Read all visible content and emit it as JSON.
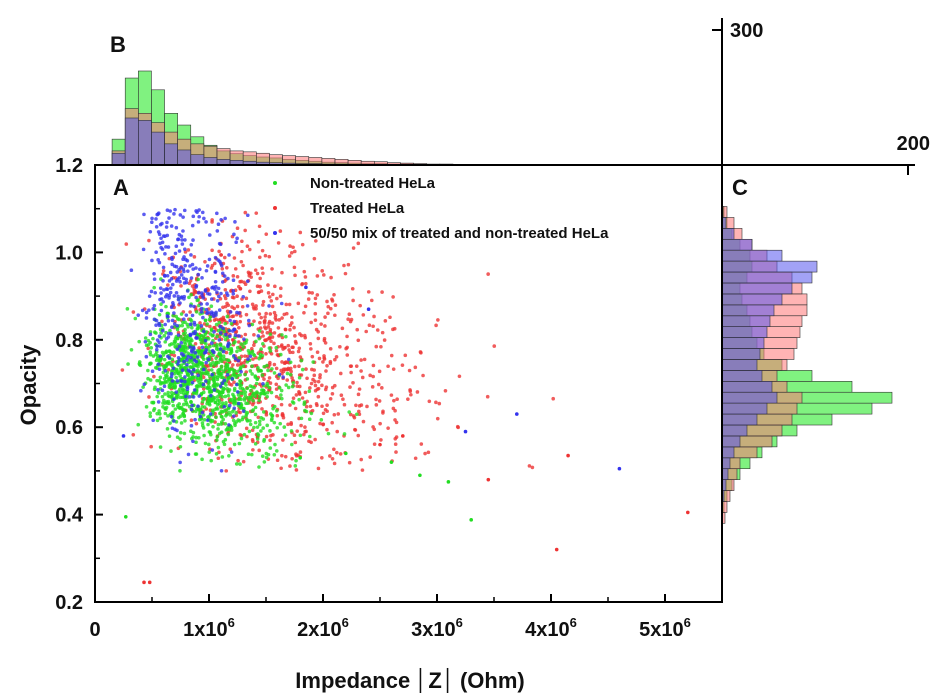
{
  "chart_data": [
    {
      "panel": "A",
      "type": "scatter",
      "xlabel": "Impedance │Z│ (Ohm)",
      "ylabel": "Opacity",
      "xlim": [
        0,
        5500000
      ],
      "ylim": [
        0.2,
        1.2
      ],
      "x_ticks": [
        0,
        1000000,
        2000000,
        3000000,
        4000000,
        5000000
      ],
      "x_tick_labels": [
        {
          "base": "0",
          "exp": ""
        },
        {
          "base": "1x10",
          "exp": "6"
        },
        {
          "base": "2x10",
          "exp": "6"
        },
        {
          "base": "3x10",
          "exp": "6"
        },
        {
          "base": "4x10",
          "exp": "6"
        },
        {
          "base": "5x10",
          "exp": "6"
        }
      ],
      "y_ticks": [
        0.2,
        0.4,
        0.6,
        0.8,
        1.0,
        1.2
      ],
      "y_tick_labels": [
        "0.2",
        "0.4",
        "0.6",
        "0.8",
        "1.0",
        "1.2"
      ],
      "legend_position": "top",
      "series": [
        {
          "name": "Non-treated HeLa",
          "color": "#22dd22",
          "points": [
            [
              270000,
              0.395
            ],
            [
              3300000,
              0.388
            ],
            [
              2600000,
              0.52
            ],
            [
              2850000,
              0.49
            ],
            [
              3100000,
              0.475
            ],
            [
              1800000,
              0.53
            ],
            [
              2200000,
              0.54
            ]
          ],
          "cluster": {
            "x_mean": 800000,
            "x_sd": 420000,
            "y_mean": 0.71,
            "y_sd": 0.07,
            "n": 1100
          }
        },
        {
          "name": "Treated HeLa",
          "color": "#ee3333",
          "points": [
            [
              5200000,
              0.405
            ],
            [
              4050000,
              0.32
            ],
            [
              430000,
              0.245
            ],
            [
              480000,
              0.245
            ],
            [
              3450000,
              0.48
            ],
            [
              4150000,
              0.535
            ],
            [
              2700000,
              0.58
            ],
            [
              2500000,
              0.56
            ]
          ],
          "cluster": {
            "x_mean": 1200000,
            "x_sd": 750000,
            "y_mean": 0.8,
            "y_sd": 0.12,
            "n": 950
          }
        },
        {
          "name": "50/50 mix of treated and non-treated HeLa",
          "color": "#3333ee",
          "points": [
            [
              4600000,
              0.505
            ],
            [
              3700000,
              0.63
            ],
            [
              3250000,
              0.59
            ],
            [
              2400000,
              0.87
            ],
            [
              1850000,
              0.92
            ],
            [
              250000,
              0.58
            ]
          ],
          "cluster": {
            "x_mean": 700000,
            "x_sd": 350000,
            "y_mean": 0.86,
            "y_sd": 0.13,
            "n": 420
          }
        }
      ]
    },
    {
      "panel": "B",
      "type": "bar",
      "orientation": "vertical",
      "description_axis": "count",
      "count_ticks": [
        {
          "value": 200,
          "label": "200"
        },
        {
          "value": 300,
          "label": "300"
        }
      ],
      "bin_start": 150000,
      "bin_width": 115000,
      "series": [
        {
          "name": "Non-treated HeLa",
          "color": "#55ee55",
          "counts": [
            55,
            185,
            200,
            160,
            110,
            85,
            60,
            42,
            30,
            24,
            20,
            17,
            15,
            12,
            10,
            8,
            6,
            5,
            4,
            3,
            3,
            2,
            2,
            1,
            1,
            1,
            1,
            0
          ]
        },
        {
          "name": "Treated HeLa",
          "color": "#ff7777",
          "counts": [
            30,
            120,
            110,
            90,
            70,
            55,
            45,
            40,
            35,
            30,
            28,
            25,
            22,
            20,
            18,
            16,
            14,
            12,
            10,
            8,
            7,
            5,
            4,
            3,
            2,
            2,
            1,
            1
          ]
        },
        {
          "name": "50/50 mix of treated and non-treated HeLa",
          "color": "#5555ee",
          "counts": [
            25,
            100,
            95,
            70,
            45,
            32,
            22,
            16,
            12,
            10,
            8,
            6,
            5,
            4,
            3,
            3,
            2,
            2,
            1,
            1,
            1,
            1,
            0,
            0,
            0,
            0,
            0,
            0
          ]
        }
      ]
    },
    {
      "panel": "C",
      "type": "bar",
      "orientation": "horizontal",
      "bin_start": 0.38,
      "bin_width": 0.025,
      "series": [
        {
          "name": "Non-treated HeLa",
          "color": "#55ee55",
          "counts": [
            0,
            2,
            5,
            10,
            18,
            28,
            40,
            55,
            75,
            110,
            150,
            170,
            130,
            90,
            60,
            42,
            35,
            30,
            28,
            25,
            20,
            18,
            25,
            30,
            28,
            18,
            10,
            5,
            2
          ]
        },
        {
          "name": "Treated HeLa",
          "color": "#ff7777",
          "counts": [
            3,
            5,
            8,
            12,
            15,
            18,
            35,
            50,
            60,
            70,
            75,
            80,
            65,
            55,
            65,
            72,
            75,
            78,
            80,
            85,
            85,
            80,
            70,
            55,
            45,
            30,
            20,
            12,
            5
          ]
        },
        {
          "name": "50/50 mix of treated and non-treated HeLa",
          "color": "#5555ee",
          "counts": [
            0,
            0,
            2,
            4,
            6,
            8,
            12,
            18,
            25,
            35,
            45,
            55,
            50,
            40,
            35,
            38,
            42,
            45,
            48,
            52,
            60,
            70,
            90,
            95,
            60,
            30,
            12,
            4,
            1
          ]
        }
      ]
    }
  ]
}
